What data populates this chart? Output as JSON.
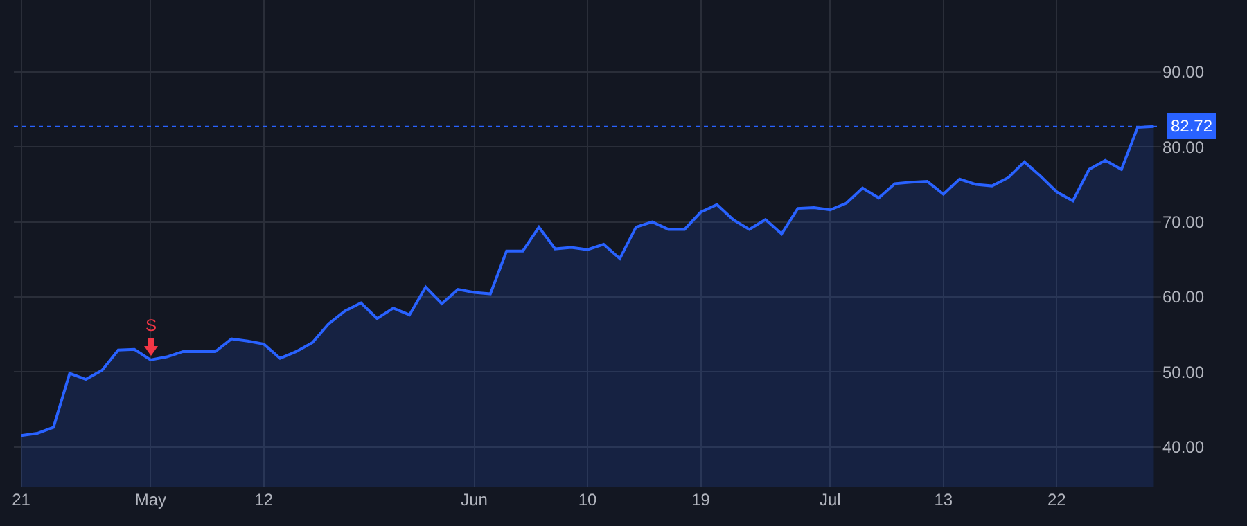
{
  "chart_data": {
    "type": "area",
    "categories": [
      "21",
      null,
      null,
      null,
      null,
      null,
      null,
      null,
      "May",
      null,
      null,
      null,
      null,
      null,
      null,
      "12",
      null,
      null,
      null,
      null,
      null,
      null,
      null,
      null,
      null,
      null,
      null,
      null,
      "Jun",
      null,
      null,
      null,
      null,
      null,
      null,
      "10",
      null,
      null,
      null,
      null,
      null,
      null,
      "19",
      null,
      null,
      null,
      null,
      null,
      null,
      null,
      "Jul",
      null,
      null,
      null,
      null,
      null,
      null,
      "13",
      null,
      null,
      null,
      null,
      null,
      null,
      "22",
      null,
      null,
      null,
      null,
      null,
      null
    ],
    "series": [
      {
        "color": "#2962ff",
        "values": [
          41.5,
          41.8,
          42.6,
          49.8,
          49.0,
          50.2,
          52.9,
          53.0,
          51.6,
          52.0,
          52.7,
          52.7,
          52.7,
          54.4,
          54.1,
          53.7,
          51.8,
          52.7,
          53.9,
          56.4,
          58.1,
          59.2,
          57.1,
          58.5,
          57.6,
          61.3,
          59.1,
          61.0,
          60.6,
          60.4,
          66.1,
          66.1,
          69.3,
          66.4,
          66.6,
          66.3,
          67.0,
          65.1,
          69.3,
          70.0,
          69.0,
          69.0,
          71.3,
          72.3,
          70.3,
          69.0,
          70.3,
          68.4,
          71.8,
          71.9,
          71.6,
          72.5,
          74.5,
          73.2,
          75.1,
          75.3,
          75.4,
          73.7,
          75.7,
          75.0,
          74.8,
          75.9,
          78.0,
          76.1,
          74.0,
          72.8,
          77.0,
          78.2,
          77.0,
          82.6,
          82.72
        ]
      }
    ],
    "ylim": [
      34.6,
      99.6
    ],
    "yticks": [
      {
        "value": 40,
        "label": "40.00"
      },
      {
        "value": 50,
        "label": "50.00"
      },
      {
        "value": 60,
        "label": "60.00"
      },
      {
        "value": 70,
        "label": "70.00"
      },
      {
        "value": 80,
        "label": "80.00"
      },
      {
        "value": 90,
        "label": "90.00"
      }
    ],
    "ref_lines": [
      {
        "axis": "y",
        "value": 82.72,
        "label": "82.72",
        "color": "#2962ff",
        "line_style": "dotted"
      }
    ],
    "annotations": [
      {
        "text": "S",
        "x": "May",
        "y": 51.6
      }
    ],
    "grid": true
  }
}
